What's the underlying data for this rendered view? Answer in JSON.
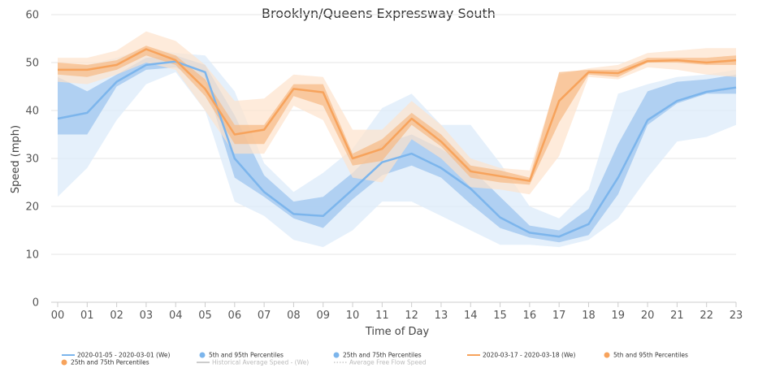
{
  "chart_data": {
    "type": "line",
    "title": "Brooklyn/Queens Expressway South",
    "xlabel": "Time of Day",
    "ylabel": "Speed (mph)",
    "ylim": [
      0,
      60
    ],
    "yticks": [
      0,
      10,
      20,
      30,
      40,
      50,
      60
    ],
    "categories": [
      "00",
      "01",
      "02",
      "03",
      "04",
      "05",
      "06",
      "07",
      "08",
      "09",
      "10",
      "11",
      "12",
      "13",
      "14",
      "15",
      "16",
      "17",
      "18",
      "19",
      "20",
      "21",
      "22",
      "23"
    ],
    "grid": "horizontal",
    "legend_position": "bottom",
    "colors": {
      "baseline_line": "#7cb5ec",
      "baseline_band_inner": "#9ec6ef",
      "baseline_band_outer": "#dcebfa",
      "event_line": "#f7a35c",
      "event_band_inner": "#f7b985",
      "event_band_outer": "#fde2cc"
    },
    "series": [
      {
        "name": "2020-01-05 - 2020-03-01 (We)",
        "role": "median",
        "group": "baseline",
        "values": [
          38.3,
          39.5,
          46,
          49.5,
          50.2,
          48,
          30,
          23,
          18.4,
          18,
          23.5,
          29.2,
          31,
          28,
          23.7,
          17.7,
          14.5,
          13.7,
          16.3,
          26,
          38,
          42,
          43.9,
          44.8
        ]
      },
      {
        "name": "5th and 95th Percentiles",
        "role": "band_outer",
        "group": "baseline",
        "low": [
          22,
          28,
          38,
          45.5,
          48,
          40,
          21,
          18,
          13,
          11.5,
          15,
          21,
          21,
          18,
          15,
          12,
          12,
          11.5,
          13,
          17.5,
          26,
          33.5,
          34.5,
          37
        ],
        "high": [
          49,
          49.5,
          51,
          53,
          52,
          51.5,
          44,
          29,
          23,
          27,
          32,
          40.5,
          43.5,
          37,
          37,
          29,
          20,
          17.5,
          23.5,
          43.5,
          45.5,
          47,
          47.5,
          48.5
        ]
      },
      {
        "name": "25th and 75th Percentiles",
        "role": "band_inner",
        "group": "baseline",
        "low": [
          35,
          35,
          45,
          48.5,
          49,
          46,
          26,
          22,
          17.5,
          15.5,
          21.5,
          26.5,
          28.5,
          26,
          20.5,
          15.5,
          13.5,
          12.5,
          14,
          22.5,
          37,
          41.5,
          43.5,
          43.5
        ],
        "high": [
          47,
          44,
          47.5,
          51,
          51.5,
          49.5,
          39,
          26.5,
          21,
          22,
          27,
          33,
          35,
          32,
          28,
          22,
          16,
          15,
          19.5,
          33,
          44,
          46,
          46.5,
          47.5
        ]
      },
      {
        "name": "2020-03-17 - 2020-03-18 (We)",
        "role": "median",
        "group": "event",
        "values": [
          48.5,
          48.5,
          49.5,
          52.8,
          50.5,
          44.5,
          35,
          36,
          44.5,
          43.8,
          30,
          32,
          38.3,
          33.5,
          27.3,
          26.3,
          25.3,
          42,
          48,
          47.8,
          50.3,
          50.5,
          50,
          50.5
        ]
      },
      {
        "name": "5th and 95th Percentiles",
        "role": "band_outer",
        "group": "event",
        "low": [
          46,
          45.5,
          47.5,
          50,
          48.5,
          40,
          31,
          31,
          41,
          38,
          26,
          25,
          34,
          30,
          24,
          23.5,
          22.5,
          30.5,
          47,
          46.5,
          49,
          48.5,
          47.5,
          47
        ],
        "high": [
          51,
          51,
          52.5,
          56.5,
          54.5,
          49.5,
          42,
          42.5,
          47.5,
          47,
          36,
          36,
          42,
          37,
          30,
          28,
          27.5,
          47.5,
          48.8,
          49.5,
          52,
          52.5,
          53,
          53
        ]
      },
      {
        "name": "25th and 75th Percentiles",
        "role": "band_inner",
        "group": "event",
        "low": [
          47.5,
          47,
          48.5,
          51.5,
          49.5,
          43,
          33,
          33,
          43,
          41,
          28.5,
          29.5,
          37,
          32.5,
          26,
          25,
          24.5,
          37.5,
          47.5,
          47,
          50,
          50,
          49.5,
          49.5
        ],
        "high": [
          50,
          49.5,
          50.5,
          53.5,
          51.5,
          46.5,
          37,
          37,
          45.5,
          45.5,
          31,
          34,
          39.5,
          35,
          28.5,
          27.5,
          26,
          48,
          48.5,
          48.5,
          51,
          51,
          51,
          51.5
        ]
      }
    ],
    "legend": [
      {
        "label": "2020-01-05 - 2020-03-01 (We)",
        "symbol": "line",
        "color": "#7cb5ec",
        "faded": false
      },
      {
        "label": "5th and 95th Percentiles",
        "symbol": "dot",
        "color": "#7cb5ec",
        "faded": false
      },
      {
        "label": "25th and 75th Percentiles",
        "symbol": "dot",
        "color": "#7cb5ec",
        "faded": false
      },
      {
        "label": "2020-03-17 - 2020-03-18 (We)",
        "symbol": "line",
        "color": "#f7a35c",
        "faded": false
      },
      {
        "label": "5th and 95th Percentiles",
        "symbol": "dot",
        "color": "#f7a35c",
        "faded": false
      },
      {
        "label": "25th and 75th Percentiles",
        "symbol": "dot",
        "color": "#f7a35c",
        "faded": false
      },
      {
        "label": "Historical Average Speed - (We)",
        "symbol": "line",
        "color": "#cccccc",
        "faded": true
      },
      {
        "label": "Average Free Flow Speed",
        "symbol": "dotted-line",
        "color": "#cccccc",
        "faded": true
      }
    ]
  }
}
